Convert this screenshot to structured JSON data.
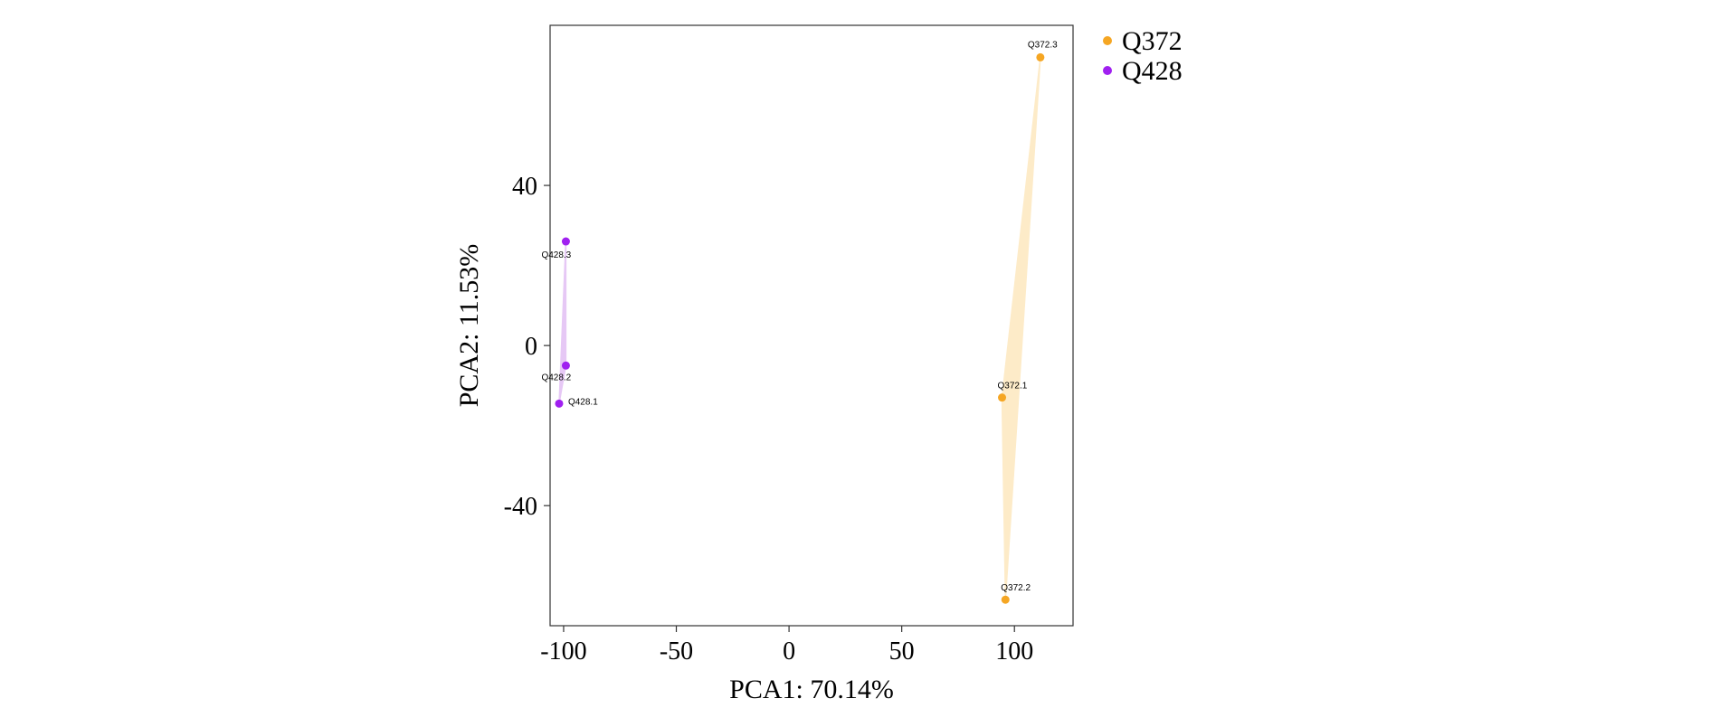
{
  "chart_data": {
    "type": "scatter",
    "xlabel": "PCA1: 70.14%",
    "ylabel": "PCA2: 11.53%",
    "xlim": [
      -106,
      126
    ],
    "ylim": [
      -70,
      80
    ],
    "x_ticks": [
      -100,
      -50,
      0,
      50,
      100
    ],
    "x_tick_labels": [
      "-100",
      "-50",
      "0",
      "50",
      "100"
    ],
    "y_ticks": [
      -40,
      0,
      40
    ],
    "y_tick_labels": [
      "-40",
      "0",
      "40"
    ],
    "grid": false,
    "legend_position": "top-right-outside",
    "series": [
      {
        "name": "Q372",
        "color": "#F5A623",
        "hull_color": "#FDEBC8",
        "points": [
          {
            "label": "Q372.1",
            "x": 94.5,
            "y": -13
          },
          {
            "label": "Q372.2",
            "x": 96,
            "y": -63.5
          },
          {
            "label": "Q372.3",
            "x": 111.5,
            "y": 72
          }
        ]
      },
      {
        "name": "Q428",
        "color": "#A020F0",
        "hull_color": "#E6C8F5",
        "points": [
          {
            "label": "Q428.1",
            "x": -102,
            "y": -14.5
          },
          {
            "label": "Q428.2",
            "x": -99,
            "y": -5
          },
          {
            "label": "Q428.3",
            "x": -99,
            "y": 26
          }
        ]
      }
    ]
  }
}
